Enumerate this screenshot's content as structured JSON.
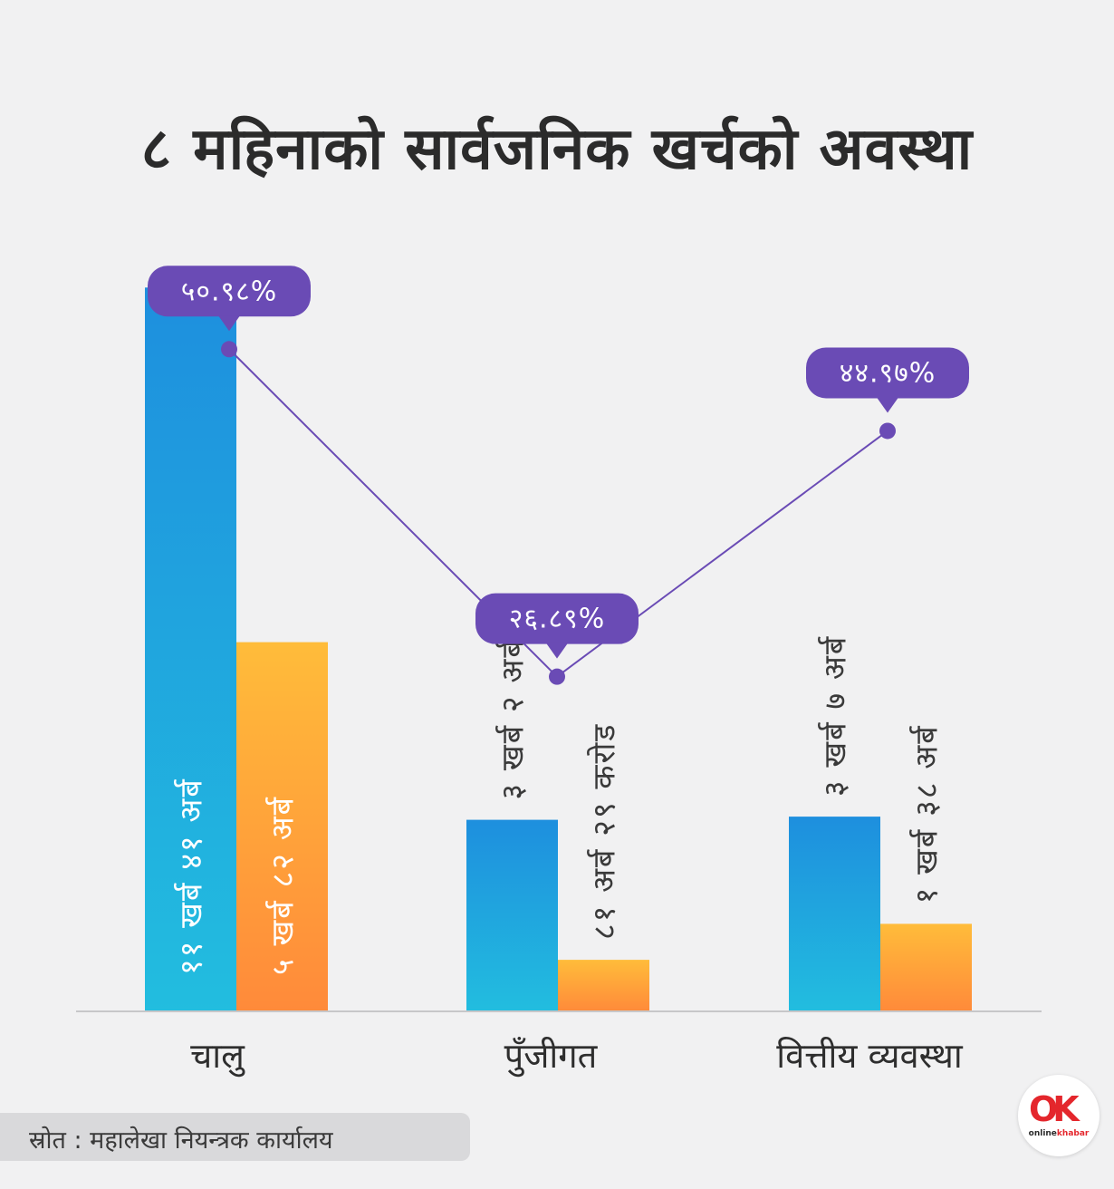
{
  "title": "८ महिनाको सार्वजनिक खर्चको अवस्था",
  "source": "स्रोत : महालेखा नियन्त्रक कार्यालय",
  "logo": {
    "text_part1": "online",
    "text_part2": "khabar"
  },
  "colors": {
    "blue_top": "#1e8fde",
    "blue_bottom": "#22bddf",
    "orange_top": "#ffbc3a",
    "orange_bottom": "#ff8a3a",
    "line": "#6a4bb5",
    "bubble": "#6a4bb5",
    "axis": "#c7c7c9"
  },
  "chart_data": {
    "type": "bar",
    "title": "८ महिनाको सार्वजनिक खर्चको अवस्था",
    "categories": [
      "चालु",
      "पुँजीगत",
      "वित्तीय व्यवस्था"
    ],
    "series": [
      {
        "values": [
          11.41,
          3.02,
          3.07
        ],
        "labels": [
          "११ खर्ब ४१ अर्ब",
          "३ खर्ब २ अर्ब",
          "३ खर्ब ७ अर्ब"
        ]
      },
      {
        "values": [
          5.82,
          0.8129,
          1.38
        ],
        "labels": [
          "५ खर्ब ८२ अर्ब",
          "८१ अर्ब २९ करोड",
          "१ खर्ब ३८ अर्ब"
        ]
      }
    ],
    "percentages": {
      "values": [
        50.98,
        26.89,
        44.97
      ],
      "labels": [
        "५०.९८%",
        "२६.८९%",
        "४४.९७%"
      ]
    }
  }
}
